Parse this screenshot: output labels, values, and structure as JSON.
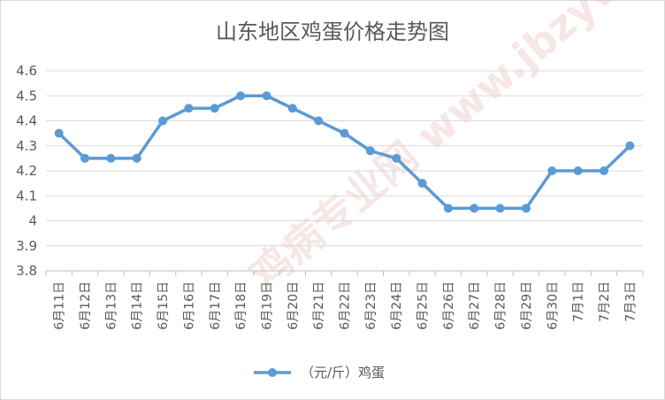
{
  "chart_data": {
    "type": "line",
    "title": "山东地区鸡蛋价格走势图",
    "xlabel": "",
    "ylabel": "",
    "categories": [
      "6月11日",
      "6月12日",
      "6月13日",
      "6月14日",
      "6月15日",
      "6月16日",
      "6月17日",
      "6月18日",
      "6月19日",
      "6月20日",
      "6月21日",
      "6月22日",
      "6月23日",
      "6月24日",
      "6月25日",
      "6月26日",
      "6月27日",
      "6月28日",
      "6月29日",
      "6月30日",
      "7月1日",
      "7月2日",
      "7月3日"
    ],
    "series": [
      {
        "name": "（元/斤）鸡蛋",
        "values": [
          4.35,
          4.25,
          4.25,
          4.25,
          4.4,
          4.45,
          4.45,
          4.5,
          4.5,
          4.45,
          4.4,
          4.35,
          4.28,
          4.25,
          4.15,
          4.05,
          4.05,
          4.05,
          4.05,
          4.2,
          4.2,
          4.2,
          4.3
        ]
      }
    ],
    "ylim": [
      3.8,
      4.6
    ],
    "yticks": [
      "3.8",
      "3.9",
      "4",
      "4.1",
      "4.2",
      "4.3",
      "4.4",
      "4.5",
      "4.6"
    ],
    "grid": true,
    "legend_position": "bottom",
    "colors": {
      "series": "#5b9bd5",
      "grid": "#d9d9d9",
      "text": "#595959",
      "border": "#d9d9d9"
    }
  },
  "watermark": "鸡病专业网 www.jbzyw.com"
}
